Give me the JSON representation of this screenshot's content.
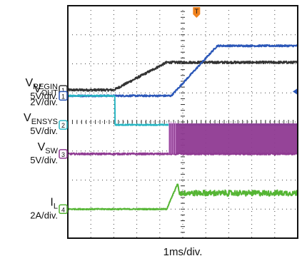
{
  "chart_data": {
    "type": "line",
    "title": "",
    "xlabel": "1ms/div.",
    "x_unit": "ms",
    "xlim": [
      0,
      10
    ],
    "divisions": {
      "x": 10,
      "y": 8
    },
    "grid": "dotted",
    "trigger_marker": "T",
    "series": [
      {
        "name": "V_REGIN",
        "sub": "REGIN",
        "scale": "5V/div.",
        "color": "#333333",
        "channel": "1",
        "ref_div": 2.9,
        "points": [
          [
            0,
            0
          ],
          [
            2.0,
            0
          ],
          [
            4.3,
            0.95
          ],
          [
            10,
            0.95
          ]
        ],
        "noise": 0.04
      },
      {
        "name": "V_OUT",
        "sub": "OUT",
        "scale": "2V/div.",
        "color": "#2b57b8",
        "channel": "1",
        "ref_div": 3.1,
        "points": [
          [
            0,
            0
          ],
          [
            4.5,
            0
          ],
          [
            6.5,
            1.72
          ],
          [
            10,
            1.72
          ]
        ],
        "noise": 0.03
      },
      {
        "name": "V_ENSYS",
        "sub": "ENSYS",
        "scale": "5V/div.",
        "color": "#2ab7c4",
        "channel": "2",
        "ref_div": 4.1,
        "points": [
          [
            0,
            1.0
          ],
          [
            2.05,
            1.0
          ],
          [
            2.05,
            0
          ],
          [
            10,
            0
          ]
        ],
        "noise": 0.02
      },
      {
        "name": "V_SW",
        "sub": "SW",
        "scale": "5V/div.",
        "color": "#8f3a92",
        "channel": "3",
        "ref_div": 5.1,
        "points": [
          [
            0,
            0
          ],
          [
            4.4,
            0
          ],
          [
            10,
            0
          ]
        ],
        "switching": {
          "start": 4.4,
          "end": 10,
          "low": 0,
          "high": 1.05
        },
        "noise": 0.03
      },
      {
        "name": "I_L",
        "sub": "L",
        "scale": "2A/div.",
        "color": "#55b534",
        "channel": "4",
        "ref_div": 7.0,
        "points": [
          [
            0,
            0
          ],
          [
            4.3,
            0
          ],
          [
            4.78,
            0.88
          ],
          [
            4.85,
            0.55
          ],
          [
            10,
            0.55
          ]
        ],
        "ripple": {
          "start": 4.85,
          "end": 10,
          "amplitude": 0.09
        },
        "noise": 0.02
      }
    ]
  }
}
